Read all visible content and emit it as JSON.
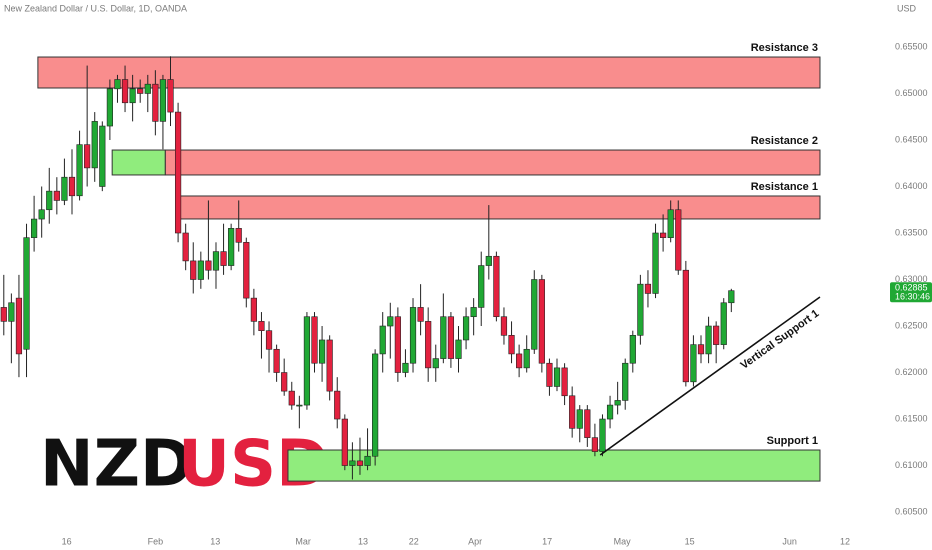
{
  "chart_data": {
    "type": "candlestick",
    "title": "New Zealand Dollar / U.S. Dollar, 1D, OANDA",
    "currency": "USD",
    "logo": [
      "NZD",
      "USD"
    ],
    "last_price": {
      "value": 0.62885,
      "label": "0.62885"
    },
    "countdown": "16:30:46",
    "up_color": "#20a834",
    "down_color": "#e3213f",
    "candles": [
      [
        0.627,
        0.6305,
        0.624,
        0.6255
      ],
      [
        0.6255,
        0.6285,
        0.621,
        0.6275
      ],
      [
        0.628,
        0.6305,
        0.6195,
        0.622
      ],
      [
        0.6225,
        0.636,
        0.6195,
        0.6345
      ],
      [
        0.6345,
        0.639,
        0.633,
        0.6365
      ],
      [
        0.6365,
        0.64,
        0.6345,
        0.6375
      ],
      [
        0.6375,
        0.642,
        0.636,
        0.6395
      ],
      [
        0.6395,
        0.641,
        0.637,
        0.6385
      ],
      [
        0.6385,
        0.643,
        0.638,
        0.641
      ],
      [
        0.641,
        0.644,
        0.637,
        0.639
      ],
      [
        0.639,
        0.646,
        0.6385,
        0.6445
      ],
      [
        0.6445,
        0.653,
        0.64,
        0.642
      ],
      [
        0.642,
        0.648,
        0.6405,
        0.647
      ],
      [
        0.64,
        0.647,
        0.6395,
        0.6465
      ],
      [
        0.6465,
        0.6515,
        0.645,
        0.6505
      ],
      [
        0.6505,
        0.652,
        0.649,
        0.6515
      ],
      [
        0.6515,
        0.653,
        0.648,
        0.649
      ],
      [
        0.649,
        0.652,
        0.647,
        0.6505
      ],
      [
        0.6505,
        0.6515,
        0.649,
        0.65
      ],
      [
        0.65,
        0.652,
        0.648,
        0.651
      ],
      [
        0.651,
        0.6525,
        0.6455,
        0.647
      ],
      [
        0.647,
        0.652,
        0.644,
        0.6515
      ],
      [
        0.6515,
        0.654,
        0.6465,
        0.648
      ],
      [
        0.648,
        0.649,
        0.634,
        0.635
      ],
      [
        0.635,
        0.636,
        0.631,
        0.632
      ],
      [
        0.632,
        0.634,
        0.6285,
        0.63
      ],
      [
        0.63,
        0.633,
        0.629,
        0.632
      ],
      [
        0.632,
        0.6385,
        0.63,
        0.631
      ],
      [
        0.631,
        0.634,
        0.629,
        0.633
      ],
      [
        0.633,
        0.636,
        0.6305,
        0.6315
      ],
      [
        0.6315,
        0.636,
        0.631,
        0.6355
      ],
      [
        0.6355,
        0.6385,
        0.633,
        0.634
      ],
      [
        0.634,
        0.6345,
        0.627,
        0.628
      ],
      [
        0.628,
        0.629,
        0.624,
        0.6255
      ],
      [
        0.6255,
        0.6265,
        0.6215,
        0.6245
      ],
      [
        0.6245,
        0.6255,
        0.62,
        0.6225
      ],
      [
        0.6225,
        0.623,
        0.619,
        0.62
      ],
      [
        0.62,
        0.6215,
        0.6175,
        0.618
      ],
      [
        0.618,
        0.619,
        0.616,
        0.6165
      ],
      [
        0.6165,
        0.6175,
        0.614,
        0.6165
      ],
      [
        0.6165,
        0.6265,
        0.616,
        0.626
      ],
      [
        0.626,
        0.6265,
        0.62,
        0.621
      ],
      [
        0.621,
        0.625,
        0.619,
        0.6235
      ],
      [
        0.6235,
        0.624,
        0.617,
        0.618
      ],
      [
        0.618,
        0.6195,
        0.614,
        0.615
      ],
      [
        0.615,
        0.6155,
        0.6095,
        0.61
      ],
      [
        0.61,
        0.6125,
        0.6085,
        0.6105
      ],
      [
        0.6105,
        0.613,
        0.609,
        0.61
      ],
      [
        0.61,
        0.614,
        0.6095,
        0.611
      ],
      [
        0.611,
        0.6225,
        0.61,
        0.622
      ],
      [
        0.622,
        0.6265,
        0.62,
        0.625
      ],
      [
        0.625,
        0.6275,
        0.6215,
        0.626
      ],
      [
        0.626,
        0.627,
        0.619,
        0.62
      ],
      [
        0.62,
        0.6225,
        0.6195,
        0.621
      ],
      [
        0.621,
        0.628,
        0.62,
        0.627
      ],
      [
        0.627,
        0.6295,
        0.624,
        0.6255
      ],
      [
        0.6255,
        0.627,
        0.619,
        0.6205
      ],
      [
        0.6205,
        0.623,
        0.619,
        0.6215
      ],
      [
        0.6215,
        0.6285,
        0.621,
        0.626
      ],
      [
        0.626,
        0.6265,
        0.6205,
        0.6215
      ],
      [
        0.6215,
        0.625,
        0.62,
        0.6235
      ],
      [
        0.6235,
        0.627,
        0.6225,
        0.626
      ],
      [
        0.626,
        0.628,
        0.624,
        0.627
      ],
      [
        0.627,
        0.633,
        0.625,
        0.6315
      ],
      [
        0.6315,
        0.638,
        0.63,
        0.6325
      ],
      [
        0.6325,
        0.633,
        0.6255,
        0.626
      ],
      [
        0.626,
        0.627,
        0.623,
        0.624
      ],
      [
        0.624,
        0.6255,
        0.621,
        0.622
      ],
      [
        0.622,
        0.623,
        0.6195,
        0.6205
      ],
      [
        0.6205,
        0.624,
        0.62,
        0.6225
      ],
      [
        0.6225,
        0.631,
        0.622,
        0.63
      ],
      [
        0.63,
        0.6305,
        0.62,
        0.621
      ],
      [
        0.621,
        0.6215,
        0.6175,
        0.6185
      ],
      [
        0.6185,
        0.6215,
        0.618,
        0.6205
      ],
      [
        0.6205,
        0.621,
        0.6165,
        0.6175
      ],
      [
        0.6175,
        0.6185,
        0.613,
        0.614
      ],
      [
        0.614,
        0.6165,
        0.6125,
        0.616
      ],
      [
        0.616,
        0.6165,
        0.612,
        0.613
      ],
      [
        0.613,
        0.6145,
        0.611,
        0.6115
      ],
      [
        0.6115,
        0.6155,
        0.611,
        0.615
      ],
      [
        0.615,
        0.6175,
        0.614,
        0.6165
      ],
      [
        0.6165,
        0.619,
        0.6155,
        0.617
      ],
      [
        0.617,
        0.6215,
        0.616,
        0.621
      ],
      [
        0.621,
        0.6245,
        0.62,
        0.624
      ],
      [
        0.624,
        0.6305,
        0.623,
        0.6295
      ],
      [
        0.6295,
        0.631,
        0.627,
        0.6285
      ],
      [
        0.6285,
        0.636,
        0.628,
        0.635
      ],
      [
        0.635,
        0.637,
        0.633,
        0.6345
      ],
      [
        0.6345,
        0.6385,
        0.634,
        0.6375
      ],
      [
        0.6375,
        0.6385,
        0.6305,
        0.631
      ],
      [
        0.631,
        0.632,
        0.6185,
        0.619
      ],
      [
        0.619,
        0.624,
        0.6185,
        0.623
      ],
      [
        0.623,
        0.624,
        0.621,
        0.622
      ],
      [
        0.622,
        0.626,
        0.621,
        0.625
      ],
      [
        0.625,
        0.6255,
        0.621,
        0.623
      ],
      [
        0.623,
        0.628,
        0.6225,
        0.6275
      ],
      [
        0.6275,
        0.629,
        0.6265,
        0.6288
      ]
    ],
    "zones": [
      {
        "label": "Resistance 3",
        "range": [
          0.65059,
          0.65392
        ],
        "from": 4.5,
        "to": 107.7,
        "color": "#f98d8d"
      },
      {
        "label": "Resistance 2",
        "range": [
          0.64124,
          0.64392
        ],
        "from": 21.3,
        "to": 107.7,
        "color": "#f98d8d"
      },
      {
        "range": [
          0.64124,
          0.64392
        ],
        "from": 14.3,
        "to": 21.3,
        "color": "#90ec7d"
      },
      {
        "label": "Resistance 1",
        "range": [
          0.63651,
          0.63898
        ],
        "from": 23.0,
        "to": 107.7,
        "color": "#f98d8d"
      },
      {
        "label": "Support 1",
        "range": [
          0.60833,
          0.61167
        ],
        "from": 37.5,
        "to": 107.7,
        "color": "#90ec7d"
      }
    ],
    "trend_line": {
      "label": "Vertical Support 1",
      "x": [
        78.7,
        107.7
      ],
      "y": [
        0.61113,
        0.62812
      ]
    },
    "xlim": [
      -0.5,
      114.3
    ],
    "ylim": [
      0.60307,
      0.66005
    ],
    "xticks": [
      {
        "value": 8.3,
        "label": "16"
      },
      {
        "value": 20.0,
        "label": "Feb"
      },
      {
        "value": 27.9,
        "label": "13"
      },
      {
        "value": 39.5,
        "label": "Mar"
      },
      {
        "value": 47.4,
        "label": "13"
      },
      {
        "value": 54.1,
        "label": "22"
      },
      {
        "value": 62.2,
        "label": "Apr"
      },
      {
        "value": 71.7,
        "label": "17"
      },
      {
        "value": 81.6,
        "label": "May"
      },
      {
        "value": 90.5,
        "label": "15"
      },
      {
        "value": 103.7,
        "label": "Jun"
      },
      {
        "value": 111.0,
        "label": "12"
      }
    ],
    "yticks": [
      {
        "value": 0.655,
        "label": "0.65500"
      },
      {
        "value": 0.65,
        "label": "0.65000"
      },
      {
        "value": 0.645,
        "label": "0.64500"
      },
      {
        "value": 0.64,
        "label": "0.64000"
      },
      {
        "value": 0.635,
        "label": "0.63500"
      },
      {
        "value": 0.63,
        "label": "0.63000"
      },
      {
        "value": 0.625,
        "label": "0.62500"
      },
      {
        "value": 0.62,
        "label": "0.62000"
      },
      {
        "value": 0.615,
        "label": "0.61500"
      },
      {
        "value": 0.61,
        "label": "0.61000"
      },
      {
        "value": 0.605,
        "label": "0.60500"
      }
    ]
  }
}
